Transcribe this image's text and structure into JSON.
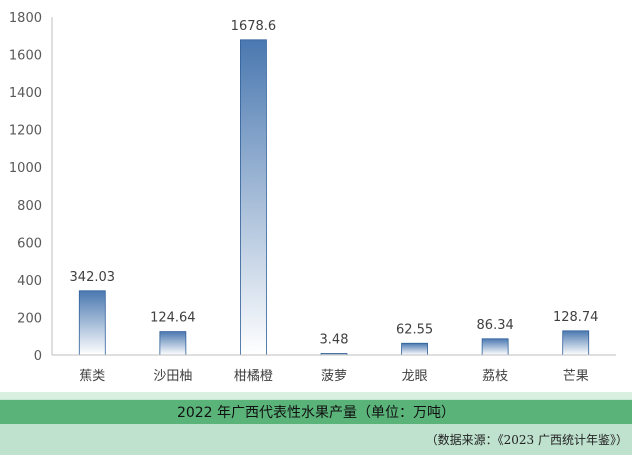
{
  "chart_data": {
    "type": "bar",
    "categories": [
      "蕉类",
      "沙田柚",
      "柑橘橙",
      "菠萝",
      "龙眼",
      "荔枝",
      "芒果"
    ],
    "values": [
      342.03,
      124.64,
      1678.6,
      3.48,
      62.55,
      86.34,
      128.74
    ],
    "value_labels": [
      "342.03",
      "124.64",
      "1678.6",
      "3.48",
      "62.55",
      "86.34",
      "128.74"
    ],
    "yticks": [
      "0",
      "200",
      "400",
      "600",
      "800",
      "1000",
      "1200",
      "1400",
      "1600",
      "1800"
    ],
    "ylim": [
      0,
      1800
    ],
    "title": "2022 年广西代表性水果产量（单位：万吨）",
    "grid": false,
    "bar_color_top": "#4a78b0",
    "bar_color_bottom": "#ffffff"
  },
  "caption": "2022 年广西代表性水果产量（单位：万吨）",
  "source": "（数据来源：《2023 广西统计年鉴》）"
}
